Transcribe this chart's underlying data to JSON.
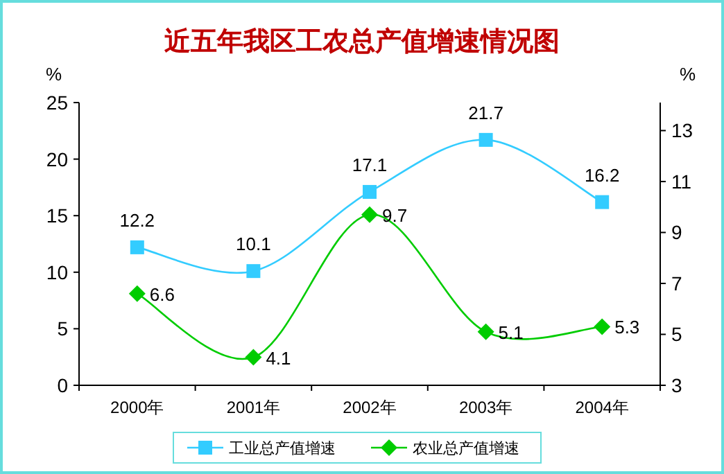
{
  "chart_data": {
    "type": "line",
    "title": "近五年我区工农总产值增速情况图",
    "categories": [
      "2000年",
      "2001年",
      "2002年",
      "2003年",
      "2004年"
    ],
    "series": [
      {
        "name": "工业总产值增速",
        "color": "#33ccff",
        "values": [
          12.2,
          10.1,
          17.1,
          21.7,
          16.2
        ],
        "marker": "square"
      },
      {
        "name": "农业总产值增速",
        "color": "#00cc00",
        "values": [
          6.6,
          4.1,
          9.7,
          5.1,
          5.3
        ],
        "marker": "diamond",
        "axis": "y2"
      }
    ],
    "ylabel": "%",
    "y2label": "%",
    "ylim": [
      0,
      25
    ],
    "yticks": [
      0,
      5,
      10,
      15,
      20,
      25
    ],
    "y2lim": [
      3,
      14.1
    ],
    "y2ticks": [
      3,
      5,
      7,
      9,
      11,
      13
    ],
    "data_labels": true,
    "legend": "bottom",
    "grid": false
  }
}
